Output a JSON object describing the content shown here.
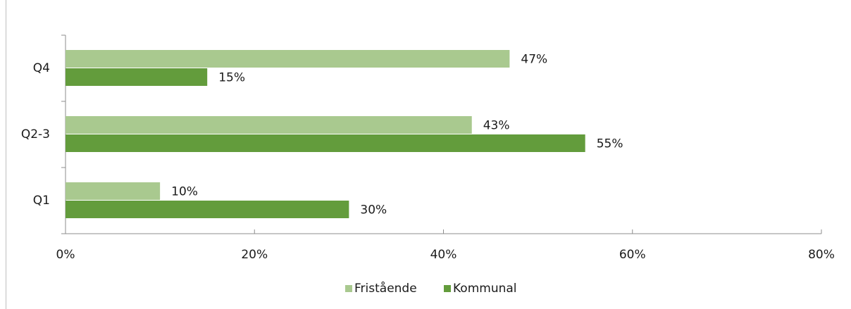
{
  "chart_data": {
    "type": "hbar",
    "categories": [
      "Q4",
      "Q2-3",
      "Q1"
    ],
    "series": [
      {
        "name": "Fristående",
        "color": "#a9c98f",
        "values": [
          47,
          43,
          10
        ],
        "value_labels": [
          "47%",
          "43%",
          "10%"
        ]
      },
      {
        "name": "Kommunal",
        "color": "#639c3c",
        "values": [
          15,
          55,
          30
        ],
        "value_labels": [
          "15%",
          "55%",
          "30%"
        ]
      }
    ],
    "xlim": [
      0,
      80
    ],
    "xticks": [
      {
        "value": 0,
        "label": "0%"
      },
      {
        "value": 20,
        "label": "20%"
      },
      {
        "value": 40,
        "label": "40%"
      },
      {
        "value": 60,
        "label": "60%"
      },
      {
        "value": 80,
        "label": "80%"
      }
    ],
    "legend": "bottom"
  }
}
